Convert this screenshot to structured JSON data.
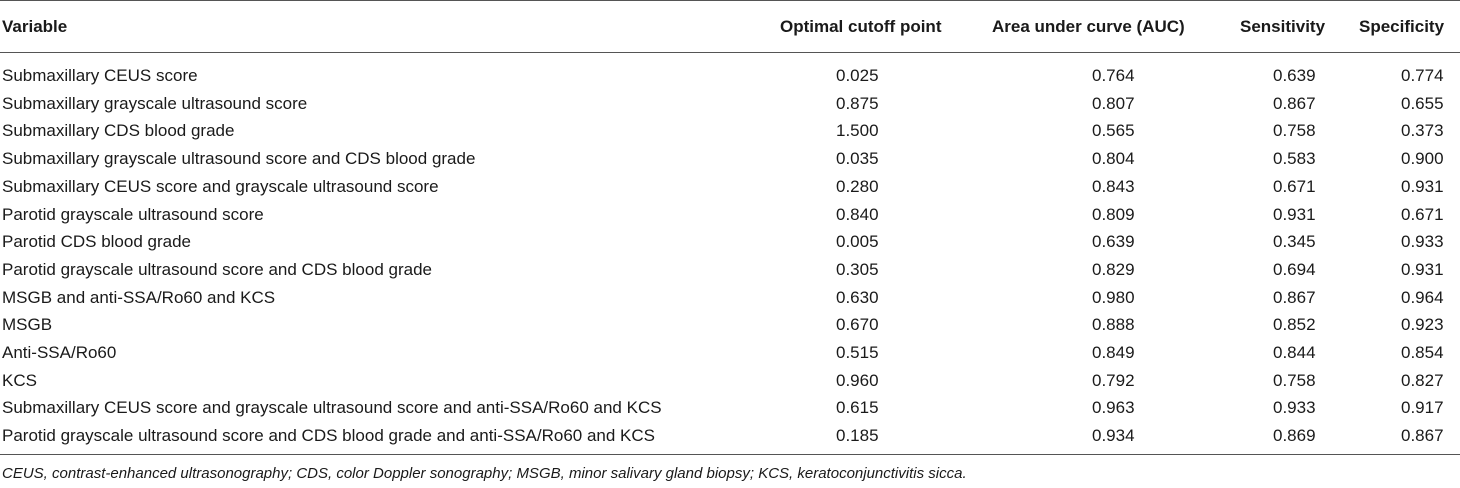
{
  "table": {
    "headers": {
      "variable": "Variable",
      "cutoff": "Optimal cutoff point",
      "auc": "Area under curve (AUC)",
      "sensitivity": "Sensitivity",
      "specificity": "Specificity"
    },
    "rows": [
      {
        "variable": "Submaxillary CEUS score",
        "cutoff": "0.025",
        "auc": "0.764",
        "sensitivity": "0.639",
        "specificity": "0.774"
      },
      {
        "variable": "Submaxillary grayscale ultrasound score",
        "cutoff": "0.875",
        "auc": "0.807",
        "sensitivity": "0.867",
        "specificity": "0.655"
      },
      {
        "variable": "Submaxillary CDS blood grade",
        "cutoff": "1.500",
        "auc": "0.565",
        "sensitivity": "0.758",
        "specificity": "0.373"
      },
      {
        "variable": "Submaxillary grayscale ultrasound score and CDS blood grade",
        "cutoff": "0.035",
        "auc": "0.804",
        "sensitivity": "0.583",
        "specificity": "0.900"
      },
      {
        "variable": "Submaxillary CEUS score and grayscale ultrasound score",
        "cutoff": "0.280",
        "auc": "0.843",
        "sensitivity": "0.671",
        "specificity": "0.931"
      },
      {
        "variable": "Parotid grayscale ultrasound score",
        "cutoff": "0.840",
        "auc": "0.809",
        "sensitivity": "0.931",
        "specificity": "0.671"
      },
      {
        "variable": "Parotid CDS blood grade",
        "cutoff": "0.005",
        "auc": "0.639",
        "sensitivity": "0.345",
        "specificity": "0.933"
      },
      {
        "variable": "Parotid grayscale ultrasound score and CDS blood grade",
        "cutoff": "0.305",
        "auc": "0.829",
        "sensitivity": "0.694",
        "specificity": "0.931"
      },
      {
        "variable": "MSGB and anti-SSA/Ro60 and KCS",
        "cutoff": "0.630",
        "auc": "0.980",
        "sensitivity": "0.867",
        "specificity": "0.964"
      },
      {
        "variable": "MSGB",
        "cutoff": "0.670",
        "auc": "0.888",
        "sensitivity": "0.852",
        "specificity": "0.923"
      },
      {
        "variable": "Anti-SSA/Ro60",
        "cutoff": "0.515",
        "auc": "0.849",
        "sensitivity": "0.844",
        "specificity": "0.854"
      },
      {
        "variable": "KCS",
        "cutoff": "0.960",
        "auc": "0.792",
        "sensitivity": "0.758",
        "specificity": "0.827"
      },
      {
        "variable": "Submaxillary CEUS score and grayscale ultrasound score and anti-SSA/Ro60 and KCS",
        "cutoff": "0.615",
        "auc": "0.963",
        "sensitivity": "0.933",
        "specificity": "0.917"
      },
      {
        "variable": "Parotid grayscale ultrasound score and CDS blood grade and anti-SSA/Ro60 and KCS",
        "cutoff": "0.185",
        "auc": "0.934",
        "sensitivity": "0.869",
        "specificity": "0.867"
      }
    ]
  },
  "footnote": "CEUS, contrast-enhanced ultrasonography; CDS, color Doppler sonography; MSGB, minor salivary gland biopsy; KCS, keratoconjunctivitis sicca."
}
